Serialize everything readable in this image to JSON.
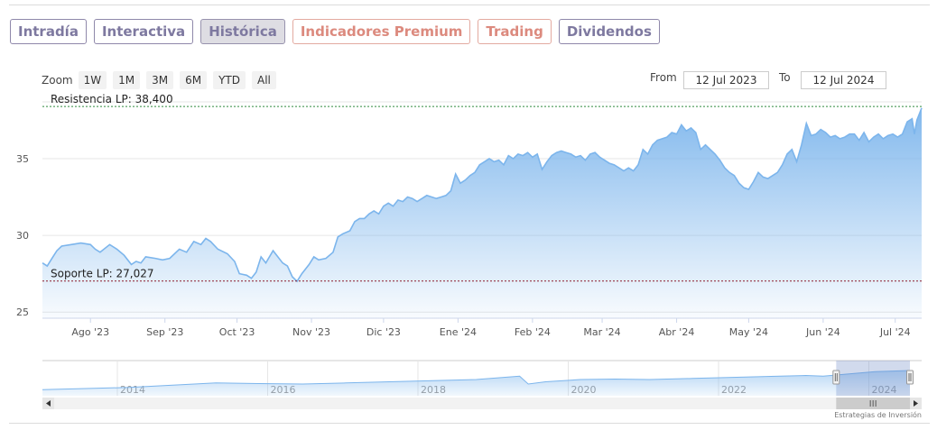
{
  "tabs": [
    {
      "label": "Intradía",
      "style": "purple"
    },
    {
      "label": "Interactiva",
      "style": "purple"
    },
    {
      "label": "Histórica",
      "style": "active"
    },
    {
      "label": "Indicadores Premium",
      "style": "orange"
    },
    {
      "label": "Trading",
      "style": "orange"
    },
    {
      "label": "Dividendos",
      "style": "purple"
    }
  ],
  "zoom": {
    "label": "Zoom",
    "buttons": [
      "1W",
      "1M",
      "3M",
      "6M",
      "YTD",
      "All"
    ]
  },
  "range": {
    "from_label": "From",
    "from_value": "12 Jul 2023",
    "to_label": "To",
    "to_value": "12 Jul 2024"
  },
  "footer": "Estrategias de Inversión",
  "colors": {
    "line": "#7cb5ec",
    "resistance": "#2e8b3e",
    "support": "#8b1a2b"
  },
  "chart_data": {
    "type": "area",
    "y_ticks": [
      "25",
      "30",
      "35"
    ],
    "ylim": [
      24.6,
      38.7
    ],
    "x_ticks": [
      {
        "label": "Ago '23",
        "d": 20
      },
      {
        "label": "Sep '23",
        "d": 51
      },
      {
        "label": "Oct '23",
        "d": 81
      },
      {
        "label": "Nov '23",
        "d": 112
      },
      {
        "label": "Dic '23",
        "d": 142
      },
      {
        "label": "Ene '24",
        "d": 173
      },
      {
        "label": "Feb '24",
        "d": 204
      },
      {
        "label": "Mar '24",
        "d": 233
      },
      {
        "label": "Abr '24",
        "d": 264
      },
      {
        "label": "May '24",
        "d": 294
      },
      {
        "label": "Jun '24",
        "d": 325
      },
      {
        "label": "Jul '24",
        "d": 355
      }
    ],
    "xlim": [
      0,
      366
    ],
    "series": [
      {
        "points": [
          [
            0,
            28.2
          ],
          [
            2,
            28.0
          ],
          [
            4,
            28.5
          ],
          [
            6,
            29.0
          ],
          [
            8,
            29.3
          ],
          [
            12,
            29.4
          ],
          [
            16,
            29.5
          ],
          [
            20,
            29.4
          ],
          [
            22,
            29.1
          ],
          [
            24,
            28.9
          ],
          [
            28,
            29.4
          ],
          [
            31,
            29.1
          ],
          [
            34,
            28.7
          ],
          [
            37,
            28.1
          ],
          [
            39,
            28.3
          ],
          [
            41,
            28.2
          ],
          [
            43,
            28.6
          ],
          [
            47,
            28.5
          ],
          [
            50,
            28.4
          ],
          [
            53,
            28.5
          ],
          [
            57,
            29.1
          ],
          [
            60,
            28.9
          ],
          [
            63,
            29.6
          ],
          [
            66,
            29.4
          ],
          [
            68,
            29.8
          ],
          [
            70,
            29.6
          ],
          [
            73,
            29.1
          ],
          [
            77,
            28.8
          ],
          [
            80,
            28.3
          ],
          [
            82,
            27.5
          ],
          [
            85,
            27.4
          ],
          [
            87,
            27.2
          ],
          [
            89,
            27.6
          ],
          [
            91,
            28.6
          ],
          [
            93,
            28.2
          ],
          [
            96,
            29.0
          ],
          [
            98,
            28.6
          ],
          [
            100,
            28.2
          ],
          [
            102,
            28.0
          ],
          [
            104,
            27.3
          ],
          [
            106,
            27.0
          ],
          [
            108,
            27.5
          ],
          [
            111,
            28.1
          ],
          [
            113,
            28.6
          ],
          [
            115,
            28.4
          ],
          [
            118,
            28.5
          ],
          [
            121,
            28.9
          ],
          [
            123,
            29.9
          ],
          [
            125,
            30.1
          ],
          [
            128,
            30.3
          ],
          [
            130,
            30.9
          ],
          [
            132,
            31.1
          ],
          [
            134,
            31.1
          ],
          [
            136,
            31.4
          ],
          [
            138,
            31.6
          ],
          [
            140,
            31.4
          ],
          [
            142,
            31.9
          ],
          [
            144,
            32.1
          ],
          [
            146,
            31.9
          ],
          [
            148,
            32.3
          ],
          [
            150,
            32.2
          ],
          [
            152,
            32.5
          ],
          [
            154,
            32.4
          ],
          [
            156,
            32.2
          ],
          [
            158,
            32.4
          ],
          [
            160,
            32.6
          ],
          [
            162,
            32.5
          ],
          [
            164,
            32.4
          ],
          [
            166,
            32.5
          ],
          [
            168,
            32.6
          ],
          [
            170,
            32.9
          ],
          [
            172,
            34.0
          ],
          [
            174,
            33.4
          ],
          [
            176,
            33.6
          ],
          [
            178,
            33.9
          ],
          [
            180,
            34.1
          ],
          [
            182,
            34.6
          ],
          [
            184,
            34.8
          ],
          [
            186,
            35.0
          ],
          [
            188,
            34.8
          ],
          [
            190,
            34.9
          ],
          [
            192,
            34.6
          ],
          [
            194,
            35.2
          ],
          [
            196,
            35.0
          ],
          [
            198,
            35.3
          ],
          [
            200,
            35.2
          ],
          [
            202,
            35.4
          ],
          [
            204,
            35.1
          ],
          [
            206,
            35.3
          ],
          [
            208,
            34.3
          ],
          [
            210,
            34.8
          ],
          [
            212,
            35.2
          ],
          [
            214,
            35.4
          ],
          [
            216,
            35.5
          ],
          [
            218,
            35.4
          ],
          [
            220,
            35.3
          ],
          [
            222,
            35.1
          ],
          [
            224,
            35.2
          ],
          [
            226,
            34.9
          ],
          [
            228,
            35.3
          ],
          [
            230,
            35.4
          ],
          [
            232,
            35.1
          ],
          [
            234,
            34.9
          ],
          [
            236,
            34.7
          ],
          [
            238,
            34.6
          ],
          [
            240,
            34.4
          ],
          [
            242,
            34.2
          ],
          [
            244,
            34.4
          ],
          [
            246,
            34.2
          ],
          [
            248,
            34.6
          ],
          [
            250,
            35.6
          ],
          [
            252,
            35.3
          ],
          [
            254,
            35.9
          ],
          [
            256,
            36.2
          ],
          [
            258,
            36.3
          ],
          [
            260,
            36.4
          ],
          [
            262,
            36.7
          ],
          [
            264,
            36.6
          ],
          [
            266,
            37.2
          ],
          [
            268,
            36.8
          ],
          [
            270,
            37.0
          ],
          [
            272,
            36.7
          ],
          [
            274,
            35.6
          ],
          [
            276,
            35.9
          ],
          [
            278,
            35.6
          ],
          [
            280,
            35.3
          ],
          [
            282,
            34.9
          ],
          [
            284,
            34.4
          ],
          [
            286,
            34.1
          ],
          [
            288,
            33.9
          ],
          [
            290,
            33.4
          ],
          [
            292,
            33.1
          ],
          [
            294,
            33.0
          ],
          [
            296,
            33.5
          ],
          [
            298,
            34.1
          ],
          [
            300,
            33.8
          ],
          [
            302,
            33.7
          ],
          [
            304,
            33.9
          ],
          [
            306,
            34.1
          ],
          [
            308,
            34.6
          ],
          [
            310,
            35.3
          ],
          [
            312,
            35.6
          ],
          [
            314,
            34.8
          ],
          [
            316,
            35.9
          ],
          [
            318,
            37.3
          ],
          [
            320,
            36.5
          ],
          [
            322,
            36.6
          ],
          [
            324,
            36.9
          ],
          [
            326,
            36.7
          ],
          [
            328,
            36.4
          ],
          [
            330,
            36.5
          ],
          [
            332,
            36.3
          ],
          [
            334,
            36.4
          ],
          [
            336,
            36.6
          ],
          [
            338,
            36.6
          ],
          [
            340,
            36.2
          ],
          [
            342,
            36.7
          ],
          [
            344,
            36.1
          ],
          [
            346,
            36.4
          ],
          [
            348,
            36.6
          ],
          [
            350,
            36.3
          ],
          [
            352,
            36.5
          ],
          [
            354,
            36.6
          ],
          [
            356,
            36.4
          ],
          [
            358,
            36.6
          ],
          [
            360,
            37.4
          ],
          [
            362,
            37.6
          ],
          [
            363,
            36.6
          ],
          [
            364,
            37.5
          ],
          [
            366,
            38.3
          ]
        ]
      }
    ],
    "resistance": {
      "label": "Resistencia LP: 38,400",
      "value": 38.4
    },
    "support": {
      "label": "Soporte LP: 27,027",
      "value": 27.027
    },
    "navigator": {
      "year_ticks": [
        "2014",
        "2016",
        "2018",
        "2020",
        "2022",
        "2024"
      ],
      "series": [
        [
          0,
          0.15
        ],
        [
          5,
          0.2
        ],
        [
          10,
          0.25
        ],
        [
          15,
          0.35
        ],
        [
          20,
          0.45
        ],
        [
          25,
          0.42
        ],
        [
          30,
          0.4
        ],
        [
          35,
          0.45
        ],
        [
          40,
          0.5
        ],
        [
          45,
          0.55
        ],
        [
          50,
          0.6
        ],
        [
          55,
          0.75
        ],
        [
          56,
          0.4
        ],
        [
          58,
          0.5
        ],
        [
          62,
          0.6
        ],
        [
          66,
          0.62
        ],
        [
          70,
          0.6
        ],
        [
          75,
          0.65
        ],
        [
          80,
          0.7
        ],
        [
          85,
          0.75
        ],
        [
          88,
          0.78
        ],
        [
          90,
          0.75
        ],
        [
          93,
          0.85
        ],
        [
          96,
          0.95
        ],
        [
          100,
          1.0
        ]
      ],
      "selected_range": [
        0.915,
        1.0
      ]
    }
  }
}
